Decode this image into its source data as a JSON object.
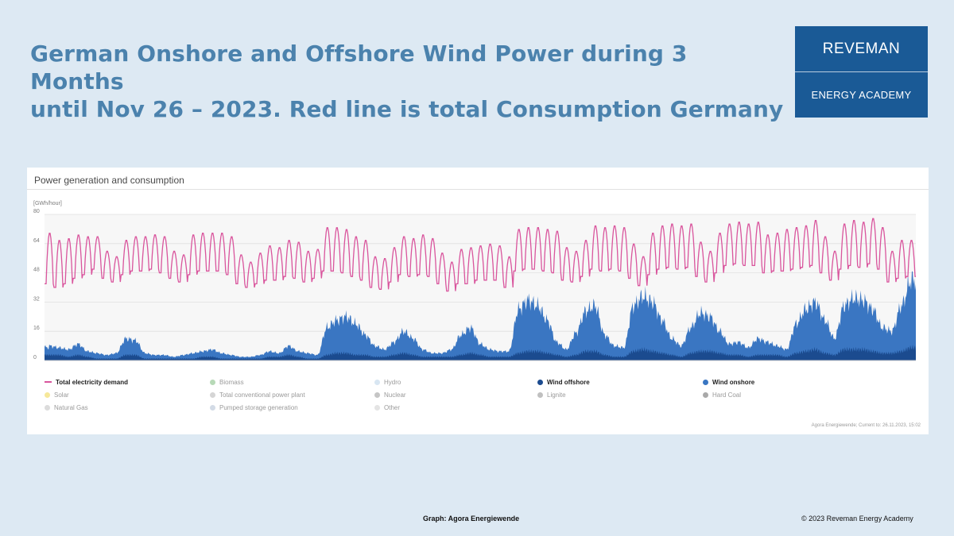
{
  "slide": {
    "title_line1": "German Onshore and Offshore Wind Power during 3 Months",
    "title_line2": "until Nov 26 – 2023. Red line is total Consumption Germany",
    "source": "Graph: Agora Energiewende",
    "copyright": "© 2023 Reveman Energy Academy"
  },
  "logo": {
    "line1": "REVEMAN",
    "line2": "ENERGY ACADEMY",
    "color": "#1a5a96"
  },
  "chart_data": {
    "type": "area",
    "title": "Power generation and consumption",
    "ylabel": "[GWh/hour]",
    "ylim": [
      0,
      80
    ],
    "yticks": [
      "0",
      "16",
      "32",
      "48",
      "64",
      "80"
    ],
    "x_days": 91,
    "grid": true,
    "legend_position": "bottom",
    "credit": "Agora Energiewende; Current to: 26.11.2023, 15:02",
    "colors": {
      "demand": "#d9559d",
      "onshore": "#3a76c2",
      "offshore": "#1b4b8f",
      "plot_bg": "#f7f7f7"
    },
    "series": [
      {
        "name": "Total electricity demand",
        "daily_peak": [
          70,
          66,
          67,
          69,
          68,
          68,
          60,
          57,
          66,
          68,
          68,
          69,
          68,
          60,
          58,
          69,
          70,
          70,
          70,
          68,
          58,
          54,
          59,
          63,
          62,
          66,
          65,
          60,
          61,
          73,
          73,
          72,
          68,
          66,
          57,
          56,
          62,
          68,
          67,
          69,
          67,
          59,
          54,
          61,
          62,
          63,
          64,
          63,
          57,
          72,
          73,
          73,
          72,
          71,
          62,
          60,
          66,
          74,
          73,
          74,
          73,
          64,
          57,
          70,
          74,
          75,
          74,
          75,
          65,
          60,
          70,
          75,
          76,
          75,
          76,
          69,
          70,
          72,
          73,
          74,
          77,
          68,
          60,
          75,
          77,
          76,
          78,
          73,
          60,
          66,
          66
        ],
        "daily_min": [
          42,
          40,
          42,
          45,
          47,
          50,
          45,
          43,
          47,
          49,
          49,
          50,
          48,
          45,
          43,
          47,
          49,
          49,
          49,
          47,
          42,
          40,
          42,
          44,
          44,
          46,
          45,
          43,
          45,
          49,
          49,
          48,
          46,
          44,
          40,
          39,
          43,
          47,
          46,
          47,
          46,
          42,
          38,
          42,
          42,
          44,
          44,
          44,
          40,
          49,
          50,
          50,
          49,
          48,
          44,
          43,
          46,
          50,
          49,
          50,
          49,
          45,
          41,
          47,
          50,
          51,
          50,
          51,
          46,
          43,
          48,
          52,
          53,
          52,
          52,
          48,
          49,
          49,
          50,
          51,
          52,
          48,
          44,
          50,
          52,
          51,
          53,
          50,
          43,
          45,
          46
        ]
      },
      {
        "name": "Wind onshore",
        "daily": [
          8,
          7,
          6,
          9,
          5,
          4,
          3,
          4,
          12,
          11,
          4,
          3,
          3,
          2,
          3,
          4,
          5,
          6,
          4,
          3,
          2,
          2,
          3,
          5,
          4,
          8,
          5,
          4,
          3,
          18,
          22,
          24,
          20,
          14,
          8,
          6,
          10,
          16,
          12,
          6,
          4,
          4,
          6,
          14,
          18,
          9,
          6,
          5,
          5,
          28,
          33,
          30,
          22,
          10,
          6,
          15,
          27,
          30,
          14,
          8,
          7,
          30,
          35,
          32,
          22,
          12,
          8,
          18,
          26,
          24,
          16,
          9,
          10,
          7,
          12,
          10,
          8,
          6,
          20,
          28,
          32,
          22,
          12,
          30,
          34,
          33,
          28,
          18,
          16,
          30,
          44
        ],
        "max": 45
      },
      {
        "name": "Wind offshore",
        "daily": [
          3,
          3,
          2,
          3,
          2,
          1,
          1,
          1,
          3,
          3,
          1,
          1,
          1,
          1,
          1,
          1,
          2,
          2,
          1,
          1,
          1,
          1,
          1,
          2,
          2,
          3,
          2,
          1,
          1,
          3,
          4,
          4,
          3,
          3,
          2,
          2,
          3,
          4,
          3,
          2,
          2,
          2,
          2,
          3,
          4,
          3,
          2,
          2,
          2,
          4,
          5,
          5,
          4,
          3,
          2,
          3,
          5,
          5,
          3,
          2,
          2,
          5,
          6,
          5,
          4,
          3,
          2,
          4,
          5,
          5,
          4,
          3,
          3,
          2,
          3,
          3,
          3,
          2,
          4,
          5,
          6,
          4,
          3,
          6,
          6,
          6,
          5,
          4,
          4,
          5,
          7
        ]
      }
    ],
    "legend": [
      {
        "label": "Total electricity demand",
        "color": "#d9559d",
        "active": true,
        "marker": "line"
      },
      {
        "label": "Biomass",
        "color": "#b7d9b7",
        "active": false
      },
      {
        "label": "Hydro",
        "color": "#d8e6f2",
        "active": false
      },
      {
        "label": "Wind offshore",
        "color": "#1b4b8f",
        "active": true
      },
      {
        "label": "Wind onshore",
        "color": "#3a76c2",
        "active": true
      },
      {
        "label": "Solar",
        "color": "#f6e89a",
        "active": false
      },
      {
        "label": "Total conventional power plant",
        "color": "#d5d5d5",
        "active": false
      },
      {
        "label": "Nuclear",
        "color": "#c5c5c5",
        "active": false
      },
      {
        "label": "Lignite",
        "color": "#c0c0c0",
        "active": false
      },
      {
        "label": "Hard Coal",
        "color": "#a9a9a9",
        "active": false
      },
      {
        "label": "Natural Gas",
        "color": "#dcdcdc",
        "active": false
      },
      {
        "label": "Pumped storage generation",
        "color": "#d3dbe6",
        "active": false
      },
      {
        "label": "Other",
        "color": "#e4e4e4",
        "active": false
      }
    ]
  }
}
